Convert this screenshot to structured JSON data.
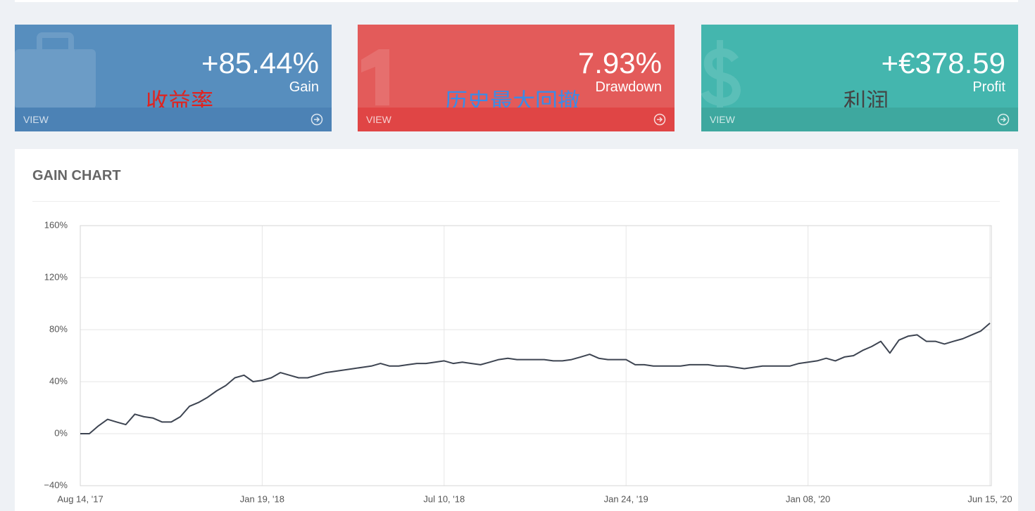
{
  "cards": [
    {
      "value": "+85.44%",
      "label": "Gain",
      "link": "VIEW",
      "annotation": "收益率"
    },
    {
      "value": "7.93%",
      "label": "Drawdown",
      "link": "VIEW",
      "annotation": "历史最大回撤"
    },
    {
      "value": "+€378.59",
      "label": "Profit",
      "link": "VIEW",
      "annotation": "利润"
    }
  ],
  "chart_data": {
    "type": "line",
    "title": "GAIN CHART",
    "color": "#3d4451",
    "grid": true,
    "categories": [
      "Aug 14, '17",
      null,
      null,
      null,
      null,
      null,
      null,
      null,
      null,
      null,
      null,
      null,
      null,
      null,
      null,
      null,
      null,
      null,
      null,
      null,
      "Jan 19, '18",
      null,
      null,
      null,
      null,
      null,
      null,
      null,
      null,
      null,
      null,
      null,
      null,
      null,
      null,
      null,
      null,
      null,
      null,
      null,
      "Jul 10, '18",
      null,
      null,
      null,
      null,
      null,
      null,
      null,
      null,
      null,
      null,
      null,
      null,
      null,
      null,
      null,
      null,
      null,
      null,
      null,
      "Jan 24, '19",
      null,
      null,
      null,
      null,
      null,
      null,
      null,
      null,
      null,
      null,
      null,
      null,
      null,
      null,
      null,
      null,
      null,
      null,
      null,
      "Jan 08, '20",
      null,
      null,
      null,
      null,
      null,
      null,
      null,
      null,
      null,
      null,
      null,
      null,
      null,
      null,
      null,
      null,
      null,
      null,
      null,
      "Jun 15, '20"
    ],
    "values": [
      0,
      0,
      6,
      11,
      9,
      7,
      15,
      13,
      12,
      9,
      9,
      13,
      21,
      24,
      28,
      33,
      37,
      43,
      45,
      40,
      41,
      43,
      47,
      45,
      43,
      43,
      45,
      47,
      48,
      49,
      50,
      51,
      52,
      54,
      52,
      52,
      53,
      54,
      54,
      55,
      56,
      54,
      55,
      54,
      53,
      55,
      57,
      58,
      57,
      57,
      57,
      57,
      56,
      56,
      57,
      59,
      61,
      58,
      57,
      57,
      57,
      53,
      53,
      52,
      52,
      52,
      52,
      53,
      53,
      53,
      52,
      52,
      51,
      50,
      51,
      52,
      52,
      52,
      52,
      54,
      55,
      56,
      58,
      56,
      59,
      60,
      64,
      67,
      71,
      62,
      72,
      75,
      76,
      71,
      71,
      69,
      71,
      73,
      76,
      79,
      85
    ],
    "ylim": [
      -40,
      160
    ],
    "yticks": [
      {
        "value": -40,
        "label": "−40%"
      },
      {
        "value": 0,
        "label": "0%"
      },
      {
        "value": 40,
        "label": "40%"
      },
      {
        "value": 80,
        "label": "80%"
      },
      {
        "value": 120,
        "label": "120%"
      },
      {
        "value": 160,
        "label": "160%"
      }
    ]
  }
}
